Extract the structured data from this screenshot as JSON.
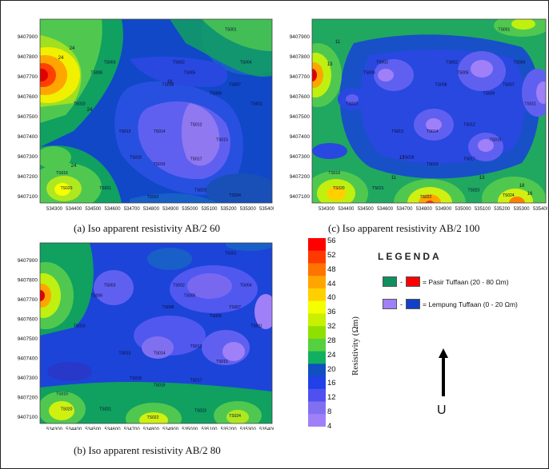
{
  "figure": {
    "panels": [
      {
        "id": "a",
        "caption": "(a) Iso apparent resistivity AB/2 60",
        "y_ticks": [
          "9407900",
          "9407800",
          "9407700",
          "9407600",
          "9407500",
          "9407400",
          "9407300",
          "9407200",
          "9407100"
        ],
        "x_ticks": [
          "534300",
          "534400",
          "534500",
          "534600",
          "534700",
          "534800",
          "534900",
          "535000",
          "535100",
          "535200",
          "535300",
          "535400"
        ],
        "stations": [
          "TS001",
          "TS002",
          "TS003",
          "TS004",
          "TS005",
          "TS006",
          "TS007",
          "TS008",
          "TS009",
          "TS010",
          "TS011",
          "TS012",
          "TS013",
          "TS014",
          "TS015",
          "TS016",
          "TS017",
          "TS018",
          "TS019",
          "TS020",
          "TS021",
          "TS022",
          "TS023",
          "TS024"
        ],
        "contour_labels": [
          "24",
          "24",
          "24",
          "16",
          "24"
        ]
      },
      {
        "id": "c",
        "caption": "(c) Iso apparent resistivity AB/2 100",
        "y_ticks": [
          "9407900",
          "9407800",
          "9407700",
          "9407600",
          "9407500",
          "9407400",
          "9407300",
          "9407200",
          "9407100"
        ],
        "x_ticks": [
          "534300",
          "534400",
          "534500",
          "534600",
          "534700",
          "534800",
          "534900",
          "535000",
          "535100",
          "535200",
          "535300",
          "535400"
        ],
        "stations": [
          "TS001",
          "TS002",
          "TS003",
          "TS004",
          "TS005",
          "TS006",
          "TS007",
          "TS008",
          "TS009",
          "TS010",
          "TS011",
          "TS012",
          "TS013",
          "TS014",
          "TS015",
          "TS016",
          "TS017",
          "TS018",
          "TS019",
          "TS020",
          "TS021",
          "TS022",
          "TS023",
          "TS024"
        ],
        "contour_labels": [
          "11",
          "13",
          "16",
          "13",
          "18",
          "13",
          "11"
        ]
      },
      {
        "id": "b",
        "caption": "(b) Iso apparent resistivity AB/2 80",
        "y_ticks": [
          "9407900",
          "9407800",
          "9407700",
          "9407600",
          "9407500",
          "9407400",
          "9407300",
          "9407200",
          "9407100"
        ],
        "x_ticks": [
          "534300",
          "534400",
          "534500",
          "534600",
          "534700",
          "534800",
          "534900",
          "535000",
          "535100",
          "535200",
          "535300",
          "535400"
        ],
        "stations": [
          "TS001",
          "TS002",
          "TS003",
          "TS004",
          "TS005",
          "TS006",
          "TS007",
          "TS008",
          "TS009",
          "TS010",
          "TS011",
          "TS012",
          "TS013",
          "TS014",
          "TS015",
          "TS016",
          "TS017",
          "TS018",
          "TS019",
          "TS020",
          "TS021",
          "TS022",
          "TS023",
          "TS024"
        ],
        "contour_labels": []
      }
    ]
  },
  "colorbar": {
    "title": "Resistivity  (Ωm)",
    "ticks": [
      "56",
      "52",
      "48",
      "44",
      "40",
      "36",
      "32",
      "28",
      "24",
      "20",
      "16",
      "12",
      "8",
      "4"
    ],
    "colors": [
      "#ff0000",
      "#ff3a00",
      "#ff7300",
      "#ffa500",
      "#ffd000",
      "#f4ff00",
      "#c8f000",
      "#8fe000",
      "#55d040",
      "#10b060",
      "#1050c0",
      "#2040e8",
      "#5050f0",
      "#8070f0",
      "#a080f8"
    ]
  },
  "legend": {
    "title": "LEGENDA",
    "rows": [
      {
        "label": "= Pasir Tuffaan (20 - 80 Ωm)",
        "color_a": "#109060",
        "color_b": "#ff0000"
      },
      {
        "label": "= Lempung Tuffaan (0 - 20 Ωm)",
        "color_a": "#a080f8",
        "color_b": "#1040c8"
      }
    ]
  },
  "north_label": "U"
}
